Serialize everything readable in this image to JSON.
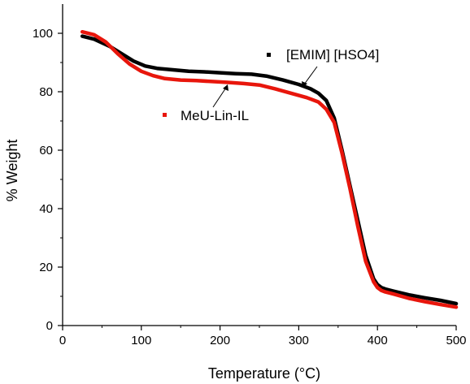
{
  "chart_data": {
    "type": "line",
    "xlabel": "Temperature (°C)",
    "ylabel": "% Weight",
    "xlim": [
      0,
      500
    ],
    "ylim": [
      0,
      110
    ],
    "xticks": [
      0,
      100,
      200,
      300,
      400,
      500
    ],
    "yticks": [
      0,
      20,
      40,
      60,
      80,
      100
    ],
    "grid": false,
    "series": [
      {
        "name": "[EMIM] [HSO4]",
        "color": "#000000",
        "x": [
          25,
          40,
          60,
          75,
          90,
          105,
          120,
          140,
          160,
          180,
          200,
          220,
          240,
          260,
          280,
          300,
          315,
          325,
          335,
          345,
          355,
          365,
          375,
          385,
          395,
          400,
          405,
          410,
          420,
          440,
          460,
          480,
          500
        ],
        "values": [
          99,
          98,
          95.5,
          93,
          90.5,
          88.8,
          88,
          87.5,
          87,
          86.8,
          86.5,
          86.2,
          86,
          85.3,
          84,
          82.5,
          81,
          79.5,
          77,
          71,
          60,
          48,
          36,
          24,
          16,
          14,
          13,
          12.5,
          11.8,
          10.5,
          9.5,
          8.6,
          7.5
        ]
      },
      {
        "name": "MeU-Lin-IL",
        "color": "#e8160c",
        "x": [
          25,
          40,
          55,
          70,
          85,
          100,
          115,
          130,
          150,
          170,
          190,
          210,
          230,
          250,
          270,
          290,
          310,
          325,
          335,
          345,
          355,
          365,
          375,
          385,
          395,
          400,
          405,
          410,
          420,
          440,
          460,
          480,
          500
        ],
        "values": [
          100.5,
          99.5,
          97,
          93,
          89.5,
          87,
          85.5,
          84.5,
          84,
          83.8,
          83.5,
          83.2,
          82.8,
          82.3,
          81,
          79.5,
          78,
          76.5,
          74,
          69.5,
          59,
          47,
          34,
          22,
          15,
          13,
          12,
          11.5,
          10.8,
          9.3,
          8.2,
          7.2,
          6.3
        ]
      }
    ],
    "legend": [
      {
        "label": "[EMIM] [HSO4]",
        "color": "#000000"
      },
      {
        "label": "MeU-Lin-IL",
        "color": "#e8160c"
      }
    ]
  }
}
